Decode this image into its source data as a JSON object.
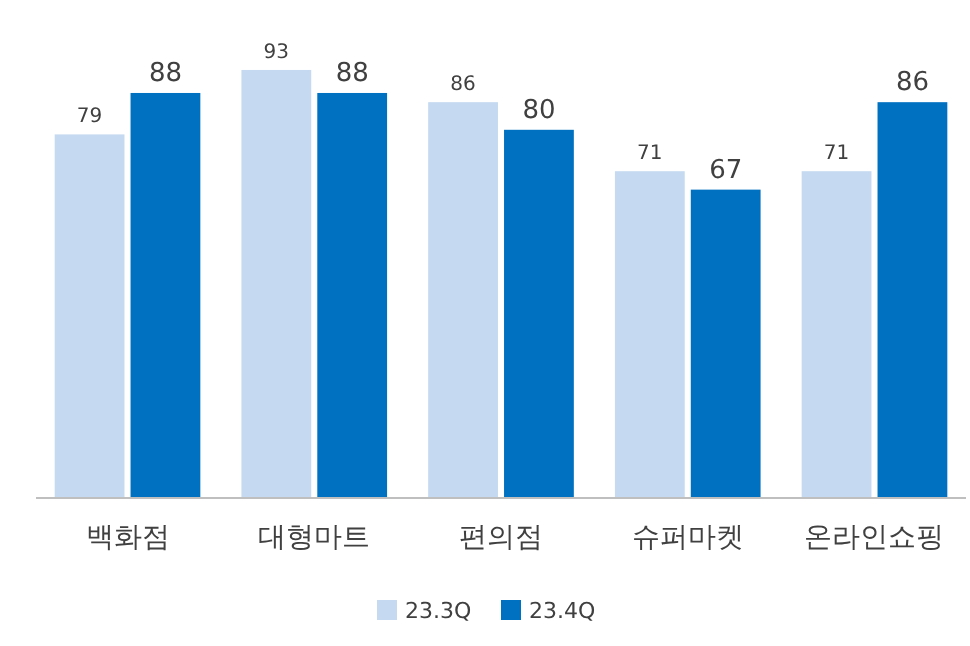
{
  "chart_data": {
    "type": "bar",
    "categories": [
      "백화점",
      "대형마트",
      "편의점",
      "슈퍼마켓",
      "온라인쇼핑"
    ],
    "series": [
      {
        "name": "23.3Q",
        "color": "#c5d9f1",
        "values": [
          79,
          93,
          86,
          71,
          71
        ]
      },
      {
        "name": "23.4Q",
        "color": "#0070c0",
        "values": [
          88,
          88,
          80,
          67,
          86
        ]
      }
    ],
    "data_labels": true,
    "legend": "bottom",
    "grid": false
  }
}
